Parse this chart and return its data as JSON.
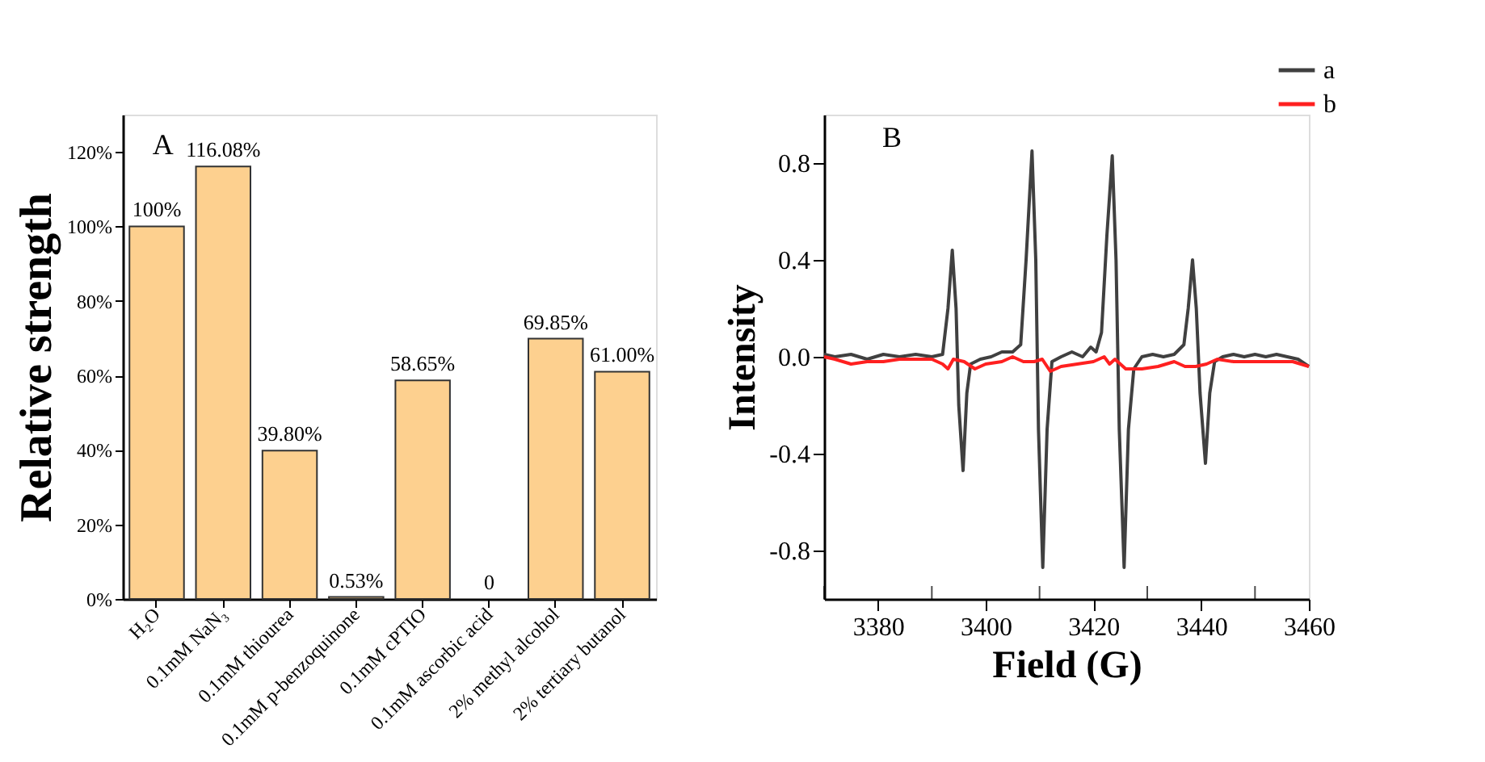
{
  "chart_data": [
    {
      "type": "bar",
      "ylabel": "Relative strength",
      "annotations": [
        "A"
      ],
      "categories": [
        "H₂O",
        "0.1mM NaN₃",
        "0.1mM thiourea",
        "0.1mM p-benzoquinone",
        "0.1mM cPTIO",
        "0.1mM ascorbic acid",
        "2% methyl alcohol",
        "2% tertiary butanol"
      ],
      "values": [
        100,
        116.08,
        39.8,
        0.53,
        58.65,
        0,
        69.85,
        61.0
      ],
      "value_labels": [
        "100%",
        "116.08%",
        "39.80%",
        "0.53%",
        "58.65%",
        "0",
        "69.85%",
        "61.00%"
      ],
      "color": "#fdd08f",
      "ylim": [
        0,
        130
      ],
      "yticks": [
        {
          "value": 0,
          "label": "0%"
        },
        {
          "value": 20,
          "label": "20%"
        },
        {
          "value": 40,
          "label": "40%"
        },
        {
          "value": 60,
          "label": "60%"
        },
        {
          "value": 80,
          "label": "80%"
        },
        {
          "value": 100,
          "label": "100%"
        },
        {
          "value": 120,
          "label": "120%"
        }
      ],
      "grid": false
    },
    {
      "type": "line",
      "xlabel": "Field (G)",
      "ylabel": "Intensity",
      "annotations": [
        "B"
      ],
      "legend": "top right",
      "grid": false,
      "xlim": [
        3370,
        3460
      ],
      "xticks": [
        3380,
        3400,
        3420,
        3440,
        3460
      ],
      "ylim": [
        -1,
        1
      ],
      "yticks": [
        -0.8,
        -0.4,
        {
          "value": 0,
          "label": "0.0"
        },
        0.4,
        0.8
      ],
      "series": [
        {
          "name": "a",
          "color": "#404040",
          "x": [
            3370,
            3372,
            3375,
            3378,
            3381,
            3384,
            3387,
            3390,
            3392,
            3393,
            3393.8,
            3394.5,
            3395,
            3395.8,
            3396.5,
            3397.2,
            3399,
            3401,
            3403,
            3405,
            3406.5,
            3407.5,
            3408.6,
            3409.3,
            3409.8,
            3410.6,
            3411.4,
            3412.3,
            3414,
            3416,
            3418,
            3419.5,
            3420.5,
            3421.5,
            3422.5,
            3423.5,
            3424.2,
            3424.8,
            3425.7,
            3426.5,
            3427.5,
            3429,
            3431,
            3433,
            3435,
            3436.8,
            3437.6,
            3438.4,
            3439.1,
            3439.8,
            3440.8,
            3441.6,
            3442.5,
            3444,
            3446,
            3448,
            3450,
            3452,
            3454,
            3456,
            3458,
            3460
          ],
          "values": [
            0.01,
            0.0,
            0.01,
            -0.01,
            0.01,
            0.0,
            0.01,
            0.0,
            0.01,
            0.2,
            0.44,
            0.2,
            -0.2,
            -0.47,
            -0.15,
            -0.03,
            -0.01,
            0.0,
            0.02,
            0.02,
            0.05,
            0.4,
            0.85,
            0.4,
            -0.3,
            -0.87,
            -0.3,
            -0.02,
            0.0,
            0.02,
            0.0,
            0.04,
            0.02,
            0.1,
            0.5,
            0.83,
            0.4,
            -0.3,
            -0.87,
            -0.3,
            -0.05,
            0.0,
            0.01,
            0.0,
            0.01,
            0.05,
            0.2,
            0.4,
            0.2,
            -0.15,
            -0.44,
            -0.15,
            -0.02,
            0.0,
            0.01,
            0.0,
            0.01,
            0.0,
            0.01,
            0.0,
            -0.01,
            -0.04
          ]
        },
        {
          "name": "b",
          "color": "#ff2020",
          "x": [
            3370,
            3372,
            3375,
            3378,
            3381,
            3384,
            3387,
            3390,
            3392,
            3393,
            3394,
            3396,
            3398,
            3400,
            3403,
            3405,
            3407,
            3409,
            3410.5,
            3412,
            3414,
            3417,
            3420,
            3422,
            3423,
            3424,
            3426,
            3429,
            3432,
            3435,
            3437,
            3439,
            3441,
            3443,
            3446,
            3450,
            3454,
            3457,
            3460
          ],
          "values": [
            0.0,
            -0.01,
            -0.03,
            -0.02,
            -0.02,
            -0.01,
            -0.01,
            -0.01,
            -0.03,
            -0.05,
            -0.01,
            -0.02,
            -0.05,
            -0.03,
            -0.02,
            0.0,
            -0.02,
            -0.02,
            -0.01,
            -0.06,
            -0.04,
            -0.03,
            -0.02,
            0.0,
            -0.03,
            -0.01,
            -0.05,
            -0.05,
            -0.04,
            -0.02,
            -0.04,
            -0.04,
            -0.03,
            -0.01,
            -0.02,
            -0.02,
            -0.02,
            -0.02,
            -0.04
          ]
        }
      ]
    }
  ]
}
